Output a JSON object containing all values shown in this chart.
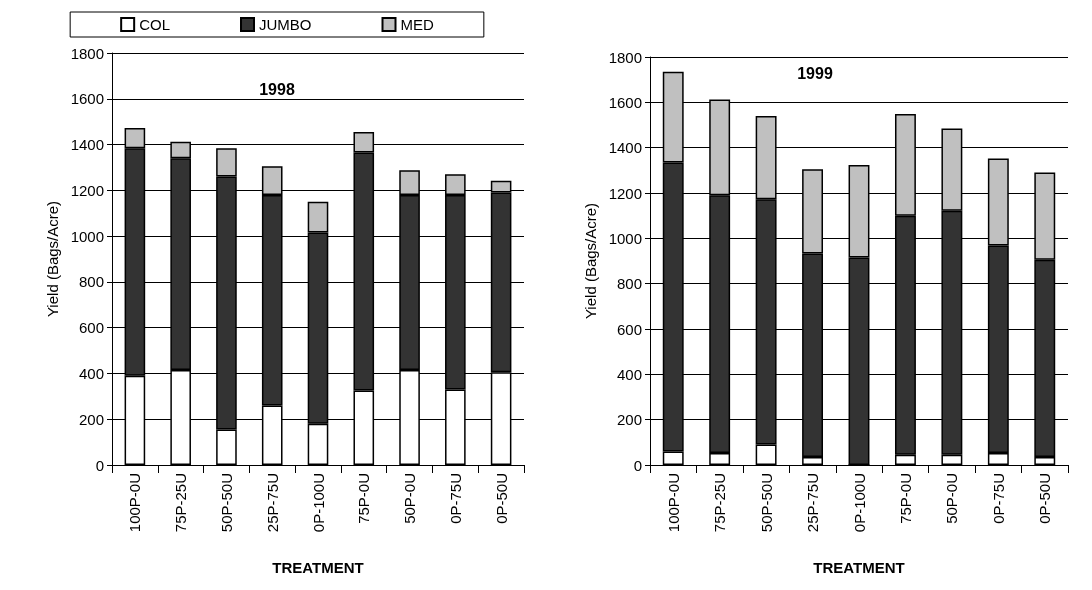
{
  "chart_data": [
    {
      "type": "bar",
      "title": "1998",
      "xlabel": "TREATMENT",
      "ylabel": "Yield (Bags/Acre)",
      "stacked": true,
      "categories": [
        "100P-0U",
        "75P-25U",
        "50P-50U",
        "25P-75U",
        "0P-100U",
        "75P-0U",
        "50P-0U",
        "0P-75U",
        "0P-50U"
      ],
      "series": [
        {
          "name": "COL",
          "color": "#ffffff",
          "values": [
            390,
            415,
            155,
            260,
            180,
            325,
            415,
            330,
            405
          ]
        },
        {
          "name": "JUMBO",
          "color": "#333333",
          "values": [
            994,
            925,
            1105,
            920,
            836,
            1040,
            765,
            850,
            785
          ]
        },
        {
          "name": "MED",
          "color": "#c0c0c0",
          "values": [
            88,
            72,
            124,
            125,
            134,
            90,
            108,
            90,
            52
          ]
        }
      ],
      "ylim": [
        0,
        1800
      ],
      "yticks": [
        0,
        200,
        400,
        600,
        800,
        1000,
        1200,
        1400,
        1600,
        1800
      ],
      "grid": "y",
      "legend": "top"
    },
    {
      "type": "bar",
      "title": "1999",
      "xlabel": "TREATMENT",
      "ylabel": "Yield (Bags/Acre)",
      "stacked": true,
      "categories": [
        "100P-0U",
        "75P-25U",
        "50P-50U",
        "25P-75U",
        "0P-100U",
        "75P-0U",
        "50P-0U",
        "0P-75U",
        "0P-50U"
      ],
      "series": [
        {
          "color": "#ffffff",
          "values": [
            60,
            53,
            90,
            35,
            0,
            45,
            45,
            53,
            35
          ]
        },
        {
          "color": "#333333",
          "values": [
            1275,
            1137,
            1082,
            898,
            915,
            1055,
            1077,
            915,
            870
          ]
        },
        {
          "color": "#c0c0c0",
          "values": [
            400,
            422,
            368,
            372,
            408,
            448,
            363,
            384,
            385
          ]
        }
      ],
      "ylim": [
        0,
        1800
      ],
      "yticks": [
        0,
        200,
        400,
        600,
        800,
        1000,
        1200,
        1400,
        1600,
        1800
      ],
      "grid": "y"
    }
  ]
}
